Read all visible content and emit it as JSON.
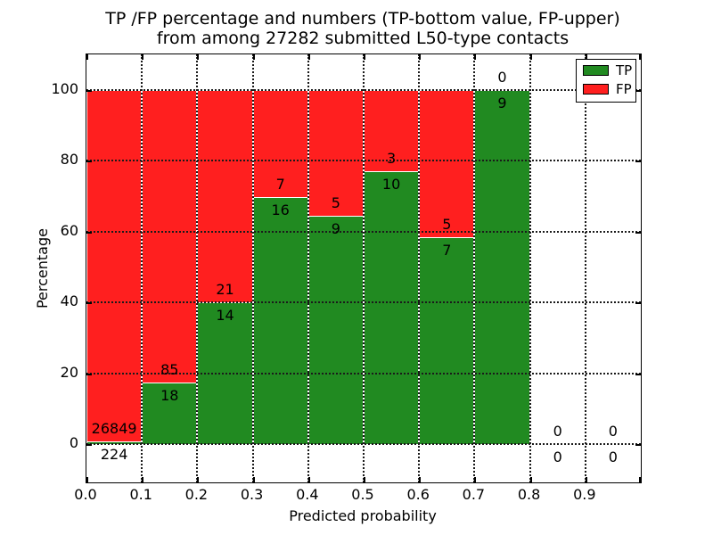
{
  "title": {
    "line1": "TP /FP percentage and numbers (TP-bottom value, FP-upper)",
    "line2": "from among 27282 submitted L50-type contacts"
  },
  "axes": {
    "xlabel": "Predicted probability",
    "ylabel": "Percentage",
    "ytick_labels": [
      "0",
      "20",
      "40",
      "60",
      "80",
      "100"
    ],
    "xtick_labels": [
      "0.0",
      "0.1",
      "0.2",
      "0.3",
      "0.4",
      "0.5",
      "0.6",
      "0.7",
      "0.8",
      "0.9"
    ]
  },
  "legend": [
    {
      "label": "TP",
      "color": "#218a21"
    },
    {
      "label": "FP",
      "color": "#ff1f1f"
    }
  ],
  "colors": {
    "tp_green": "#218a21",
    "fp_red": "#ff1f1f",
    "grid": "#1a1a1a"
  },
  "chart_data": {
    "type": "bar",
    "stacked": true,
    "title": "TP /FP percentage and numbers (TP-bottom value, FP-upper) from among 27282 submitted L50-type contacts",
    "xlabel": "Predicted probability",
    "ylabel": "Percentage",
    "total_submitted": 27282,
    "bin_starts": [
      0.0,
      0.1,
      0.2,
      0.3,
      0.4,
      0.5,
      0.6,
      0.7,
      0.8,
      0.9
    ],
    "bin_width": 0.1,
    "xlim": [
      0.0,
      1.0
    ],
    "ylim": [
      -10.8,
      109.4
    ],
    "yticks": [
      0,
      20,
      40,
      60,
      80,
      100
    ],
    "grid": "dotted",
    "legend_position": "upper right",
    "series": [
      {
        "name": "TP",
        "color": "#218a21",
        "counts": [
          224,
          18,
          14,
          16,
          9,
          10,
          7,
          9,
          0,
          0
        ],
        "percentages": [
          0.83,
          17.48,
          40.0,
          69.57,
          64.29,
          76.92,
          58.33,
          100.0,
          0,
          0
        ]
      },
      {
        "name": "FP",
        "color": "#ff1f1f",
        "counts": [
          26849,
          85,
          21,
          7,
          5,
          3,
          5,
          0,
          0,
          0
        ],
        "percentages": [
          99.17,
          82.52,
          60.0,
          30.43,
          35.71,
          23.08,
          41.67,
          0.0,
          0,
          0
        ]
      }
    ]
  }
}
